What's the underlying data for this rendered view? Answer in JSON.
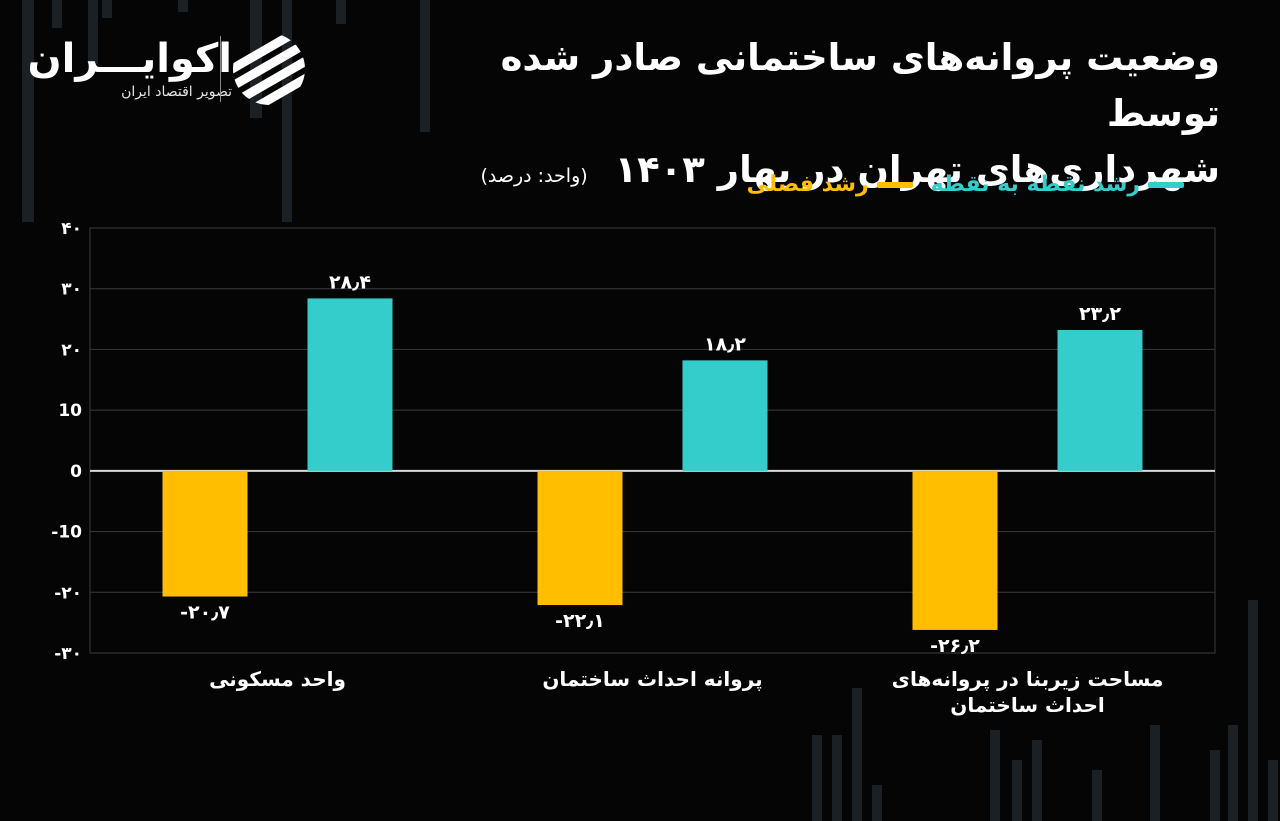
{
  "brand": {
    "name": "اکوایـــران",
    "subtitle": "تصویر اقتصاد ایران"
  },
  "title": {
    "line1": "وضعیت پروانه‌های ساختمانی صادر شده توسط",
    "line2": "شهرداری‌های تهران در بهار ۱۴۰۳",
    "unit": "(واحد: درصد)"
  },
  "colors": {
    "yoy": "#35cccc",
    "qoq": "#ffbf00",
    "background": "#050505"
  },
  "chart_data": {
    "type": "bar",
    "categories": [
      "واحد مسکونی",
      "پروانه احداث ساختمان",
      "مساحت زیربنا در پروانه‌های احداث ساختمان"
    ],
    "category_lines": [
      [
        "واحد مسکونی"
      ],
      [
        "پروانه احداث ساختمان"
      ],
      [
        "مساحت زیربنا در پروانه‌های",
        "احداث ساختمان"
      ]
    ],
    "series": [
      {
        "name": "رشد نقطه به نقطه",
        "color": "#35cccc",
        "values": [
          28.4,
          18.2,
          23.2
        ],
        "labels": [
          "۲۸٫۴",
          "۱۸٫۲",
          "۲۳٫۲"
        ]
      },
      {
        "name": "رشد فصلی",
        "color": "#ffbf00",
        "values": [
          -20.7,
          -22.1,
          -26.2
        ],
        "labels": [
          "-۲۰٫۷",
          "-۲۲٫۱",
          "-۲۶٫۲"
        ]
      }
    ],
    "ylim": [
      -30,
      40
    ],
    "yticks": [
      40,
      30,
      20,
      10,
      0,
      -10,
      -20,
      -30
    ],
    "ytick_labels": [
      "۴۰",
      "۳۰",
      "۲۰",
      "10",
      "0",
      "-10",
      "-۲۰",
      "-۳۰"
    ],
    "grid": true,
    "legend_position": "top-right"
  }
}
